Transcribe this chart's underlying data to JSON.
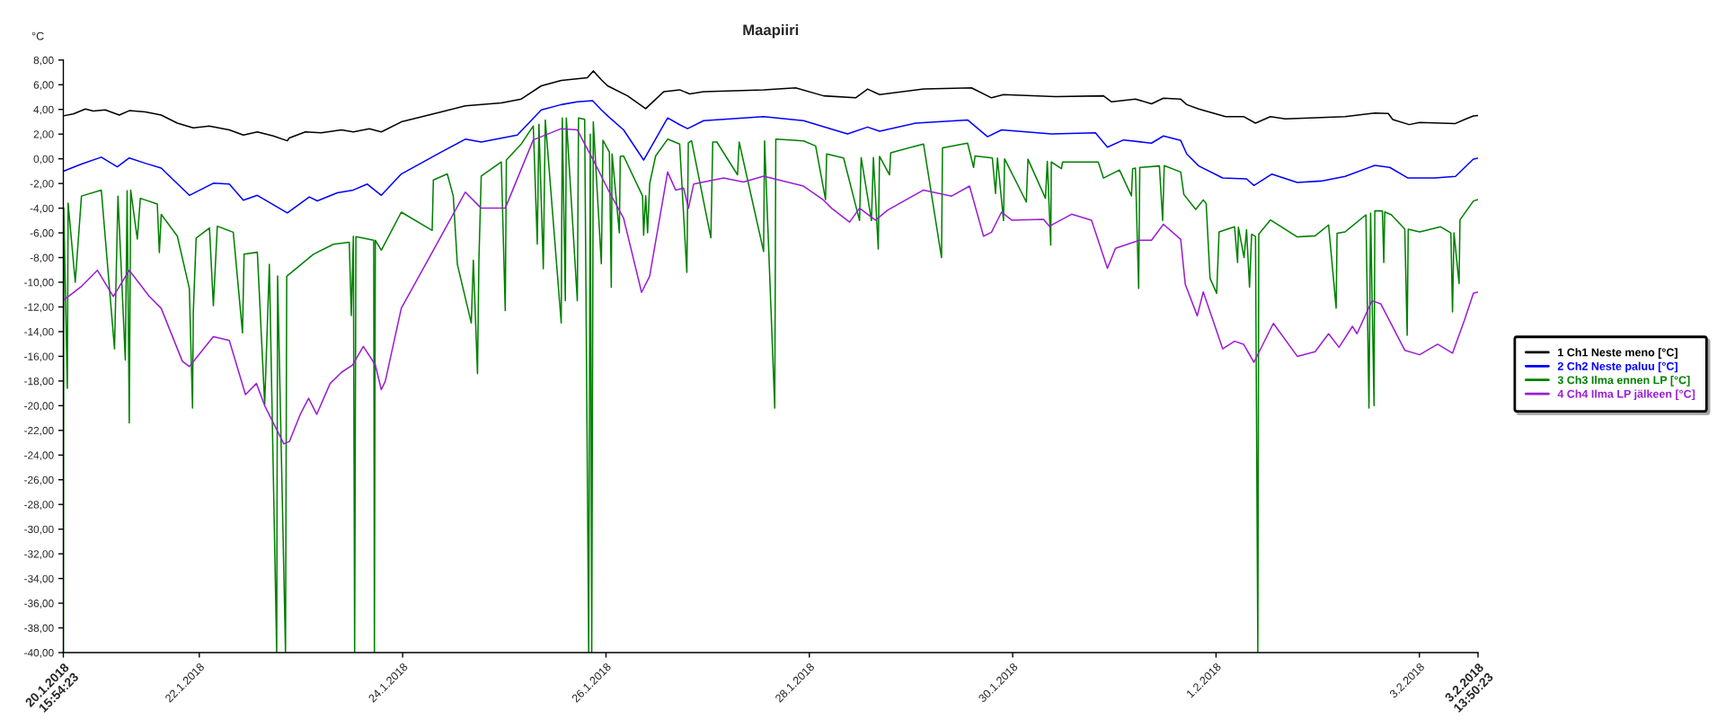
{
  "chart_data": {
    "type": "line",
    "title": "Maapiiri",
    "ylabel": "°C",
    "xlim": [
      "2018-01-20T15:54:23",
      "2018-02-03T13:50:23"
    ],
    "xticks": [
      {
        "value": "2018-01-20T15:54:23",
        "label": "20.1.2018\n15:54:23"
      },
      {
        "value": "2018-01-22",
        "label": "22.1.2018"
      },
      {
        "value": "2018-01-24",
        "label": "24.1.2018"
      },
      {
        "value": "2018-01-26",
        "label": "26.1.2018"
      },
      {
        "value": "2018-01-28",
        "label": "28.1.2018"
      },
      {
        "value": "2018-01-30",
        "label": "30.1.2018"
      },
      {
        "value": "2018-02-01",
        "label": "1.2.2018"
      },
      {
        "value": "2018-02-03",
        "label": "3.2.2018"
      },
      {
        "value": "2018-02-03T13:50:23",
        "label": "3.2.2018\n13:50:23"
      }
    ],
    "ylim": [
      -40,
      8
    ],
    "yticks": [
      {
        "value": 8,
        "label": "8,00"
      },
      {
        "value": 6,
        "label": "6,00"
      },
      {
        "value": 4,
        "label": "4,00"
      },
      {
        "value": 2,
        "label": "2,00"
      },
      {
        "value": 0,
        "label": "0,00"
      },
      {
        "value": -2,
        "label": "-2,00"
      },
      {
        "value": -4,
        "label": "-4,00"
      },
      {
        "value": -6,
        "label": "-6,00"
      },
      {
        "value": -8,
        "label": "-8,00"
      },
      {
        "value": -10,
        "label": "-10,00"
      },
      {
        "value": -12,
        "label": "-12,00"
      },
      {
        "value": -14,
        "label": "-14,00"
      },
      {
        "value": -16,
        "label": "-16,00"
      },
      {
        "value": -18,
        "label": "-18,00"
      },
      {
        "value": -20,
        "label": "-20,00"
      },
      {
        "value": -22,
        "label": "-22,00"
      },
      {
        "value": -24,
        "label": "-24,00"
      },
      {
        "value": -26,
        "label": "-26,00"
      },
      {
        "value": -28,
        "label": "-28,00"
      },
      {
        "value": -30,
        "label": "-30,00"
      },
      {
        "value": -32,
        "label": "-32,00"
      },
      {
        "value": -34,
        "label": "-34,00"
      },
      {
        "value": -36,
        "label": "-36,00"
      },
      {
        "value": -38,
        "label": "-38,00"
      },
      {
        "value": -40,
        "label": "-40,00"
      }
    ],
    "legend": "right",
    "series": [
      {
        "name": "1 Ch1 Neste meno [°C]",
        "color": "#000000",
        "x": [
          "2018-01-20T15:54:23",
          "2018-01-20T18:16",
          "2018-01-20T21:06",
          "2018-01-20T22:58",
          "2018-01-21T01:48",
          "2018-01-21T05:07",
          "2018-01-21T07:28",
          "2018-01-21T11:15",
          "2018-01-21T15:01",
          "2018-01-21T18:49",
          "2018-01-21T22:35",
          "2018-01-22T02:21",
          "2018-01-22T07:05",
          "2018-01-22T10:24",
          "2018-01-22T13:42",
          "2018-01-22T17:28",
          "2018-01-22T20:47",
          "2018-01-22T21:14",
          "2018-01-23T01:02",
          "2018-01-23T04:48",
          "2018-01-23T09:32",
          "2018-01-23T12:22",
          "2018-01-23T16:08",
          "2018-01-23T18:58",
          "2018-01-23T23:41",
          "2018-01-24T09:07",
          "2018-01-24T14:47",
          "2018-01-24T23:17",
          "2018-01-25T04:00",
          "2018-01-25T08:44",
          "2018-01-25T13:26",
          "2018-01-25T19:35",
          "2018-01-25T21:00",
          "2018-01-25T22:54",
          "2018-01-26T00:23",
          "2018-01-26T05:05",
          "2018-01-26T09:22",
          "2018-01-26T13:36",
          "2018-01-26T17:23",
          "2018-01-26T19:44",
          "2018-01-26T23:02",
          "2018-01-27T13:12",
          "2018-01-27T20:46",
          "2018-01-28T03:22",
          "2018-01-28T10:55",
          "2018-01-28T13:45",
          "2018-01-28T16:35",
          "2018-01-29T02:57",
          "2018-01-29T14:17",
          "2018-01-29T19:00",
          "2018-01-29T21:50",
          "2018-01-30T10:06",
          "2018-01-30T21:26",
          "2018-01-30T23:20",
          "2018-01-31T04:59",
          "2018-01-31T08:46",
          "2018-01-31T11:35",
          "2018-01-31T15:40",
          "2018-01-31T17:05",
          "2018-01-31T19:55",
          "2018-02-01T02:15",
          "2018-02-01T06:29",
          "2018-02-01T09:19",
          "2018-02-01T12:50",
          "2018-02-01T16:21",
          "2018-02-02T06:27",
          "2018-02-02T13:29",
          "2018-02-02T16:39",
          "2018-02-02T17:43",
          "2018-02-02T21:36",
          "2018-02-03T00:04",
          "2018-02-03T08:31",
          "2018-02-03T10:38",
          "2018-02-03T12:45",
          "2018-02-03T13:50:23"
        ],
        "values": [
          3.48,
          3.64,
          4.03,
          3.87,
          3.96,
          3.54,
          3.9,
          3.8,
          3.54,
          2.89,
          2.5,
          2.66,
          2.34,
          1.92,
          2.18,
          1.85,
          1.46,
          1.69,
          2.18,
          2.11,
          2.34,
          2.18,
          2.44,
          2.18,
          2.99,
          3.8,
          4.29,
          4.52,
          4.84,
          5.91,
          6.34,
          6.56,
          7.12,
          6.4,
          5.91,
          5.1,
          4.06,
          5.43,
          5.59,
          5.26,
          5.43,
          5.59,
          5.75,
          5.1,
          4.94,
          5.65,
          5.2,
          5.65,
          5.75,
          4.94,
          5.2,
          5.04,
          5.1,
          4.61,
          4.84,
          4.45,
          4.91,
          4.83,
          4.39,
          4.03,
          3.42,
          3.42,
          2.89,
          3.42,
          3.23,
          3.42,
          3.71,
          3.67,
          3.18,
          2.77,
          2.94,
          2.86,
          3.18,
          3.47,
          3.5
        ]
      },
      {
        "name": "2 Ch2 Neste paluu [°C]",
        "color": "#0000ff",
        "x": [
          "2018-01-20T15:54:23",
          "2018-01-20T20:11",
          "2018-01-21T00:52",
          "2018-01-21T04:39",
          "2018-01-21T07:28",
          "2018-01-21T11:15",
          "2018-01-21T15:01",
          "2018-01-21T21:39",
          "2018-01-22T03:19",
          "2018-01-22T07:05",
          "2018-01-22T10:24",
          "2018-01-22T13:42",
          "2018-01-22T20:47",
          "2018-01-23T01:58",
          "2018-01-23T03:52",
          "2018-01-23T08:34",
          "2018-01-23T12:22",
          "2018-01-23T15:39",
          "2018-01-23T18:58",
          "2018-01-23T23:41",
          "2018-01-24T09:07",
          "2018-01-24T14:47",
          "2018-01-24T18:33",
          "2018-01-25T03:04",
          "2018-01-25T08:44",
          "2018-01-25T13:26",
          "2018-01-25T17:14",
          "2018-01-25T20:50",
          "2018-01-25T22:54",
          "2018-01-26T00:23",
          "2018-01-26T04:09",
          "2018-01-26T08:53",
          "2018-01-26T14:33",
          "2018-01-26T17:23",
          "2018-01-26T19:16",
          "2018-01-26T23:02",
          "2018-01-27T13:12",
          "2018-01-27T22:38",
          "2018-01-28T09:01",
          "2018-01-28T13:45",
          "2018-01-28T16:35",
          "2018-01-29T01:05",
          "2018-01-29T13:21",
          "2018-01-29T18:04",
          "2018-01-29T21:22",
          "2018-01-30T09:10",
          "2018-01-30T19:32",
          "2018-01-30T22:22",
          "2018-01-31T02:10",
          "2018-01-31T08:46",
          "2018-01-31T11:35",
          "2018-01-31T15:40",
          "2018-01-31T17:05",
          "2018-01-31T19:55",
          "2018-02-01T01:34",
          "2018-02-01T07:12",
          "2018-02-01T08:57",
          "2018-02-01T13:11",
          "2018-02-01T19:11",
          "2018-02-02T00:49",
          "2018-02-02T06:27",
          "2018-02-02T13:29",
          "2018-02-02T17:01",
          "2018-02-02T21:14",
          "2018-02-03T03:35",
          "2018-02-03T08:31",
          "2018-02-03T12:45",
          "2018-02-03T13:50:23"
        ],
        "values": [
          -1.01,
          -0.42,
          0.13,
          -0.65,
          0.07,
          -0.36,
          -0.75,
          -2.96,
          -1.98,
          -2.05,
          -3.35,
          -2.96,
          -4.39,
          -3.09,
          -3.41,
          -2.76,
          -2.53,
          -2.05,
          -2.96,
          -1.23,
          0.55,
          1.59,
          1.36,
          1.92,
          3.96,
          4.39,
          4.61,
          4.71,
          3.96,
          3.48,
          2.34,
          -0.1,
          3.31,
          2.76,
          2.44,
          3.09,
          3.41,
          3.09,
          2.01,
          2.57,
          2.24,
          2.89,
          3.15,
          1.79,
          2.34,
          2.01,
          2.11,
          0.94,
          1.53,
          1.27,
          1.85,
          1.48,
          0.39,
          -0.58,
          -1.55,
          -1.63,
          -2.16,
          -1.24,
          -1.92,
          -1.8,
          -1.43,
          -0.53,
          -0.7,
          -1.55,
          -1.55,
          -1.43,
          -0.02,
          0.05
        ]
      },
      {
        "name": "3 Ch3 Ilma ennen LP [°C]",
        "color": "#008000",
        "x": [
          "2018-01-20T15:54:23",
          "2018-01-20T16:00",
          "2018-01-20T16:51",
          "2018-01-20T17:02",
          "2018-01-20T18:43",
          "2018-01-20T20:11",
          "2018-01-21T00:52",
          "2018-01-21T03:59",
          "2018-01-21T04:48",
          "2018-01-21T06:32",
          "2018-01-21T06:58",
          "2018-01-21T07:28",
          "2018-01-21T07:48",
          "2018-01-21T09:22",
          "2018-01-21T10:05",
          "2018-01-21T14:05",
          "2018-01-21T14:34",
          "2018-01-21T15:01",
          "2018-01-21T18:49",
          "2018-01-21T21:39",
          "2018-01-21T22:24",
          "2018-01-21T22:35",
          "2018-01-21T23:15",
          "2018-01-22T02:24",
          "2018-01-22T03:19",
          "2018-01-22T04:15",
          "2018-01-22T08:01",
          "2018-01-22T10:12",
          "2018-01-22T10:34",
          "2018-01-22T13:42",
          "2018-01-22T15:26",
          "2018-01-22T16:32",
          "2018-01-22T18:16",
          "2018-01-22T18:29",
          "2018-01-22T20:21",
          "2018-01-22T20:38",
          "2018-01-23T02:56",
          "2018-01-23T07:38",
          "2018-01-23T11:24",
          "2018-01-23T11:53",
          "2018-01-23T12:22",
          "2018-01-23T12:40",
          "2018-01-23T12:58",
          "2018-01-23T17:10",
          "2018-01-23T17:20",
          "2018-01-23T17:33",
          "2018-01-23T18:58",
          "2018-01-23T23:41",
          "2018-01-24T06:58",
          "2018-01-24T07:15",
          "2018-01-24T10:32",
          "2018-01-24T11:57",
          "2018-01-24T12:55",
          "2018-01-24T16:12",
          "2018-01-24T16:41",
          "2018-01-24T17:40",
          "2018-01-24T18:00",
          "2018-01-24T18:33",
          "2018-01-24T23:17",
          "2018-01-25T00:13",
          "2018-01-25T00:29",
          "2018-01-25T04:00",
          "2018-01-25T06:50",
          "2018-01-25T07:47",
          "2018-01-25T08:10",
          "2018-01-25T09:12",
          "2018-01-25T09:40",
          "2018-01-25T13:26",
          "2018-01-25T13:41",
          "2018-01-25T14:24",
          "2018-01-25T14:38",
          "2018-01-25T17:14",
          "2018-01-25T17:31",
          "2018-01-25T18:58",
          "2018-01-25T19:55",
          "2018-01-25T20:17",
          "2018-01-25T20:38",
          "2018-01-25T21:00",
          "2018-01-25T22:54",
          "2018-01-25T23:17",
          "2018-01-26T00:48",
          "2018-01-26T01:15",
          "2018-01-26T01:26",
          "2018-01-26T03:09",
          "2018-01-26T03:22",
          "2018-01-26T04:09",
          "2018-01-26T08:38",
          "2018-01-26T08:53",
          "2018-01-26T09:22",
          "2018-01-26T09:49",
          "2018-01-26T10:19",
          "2018-01-26T11:43",
          "2018-01-26T14:33",
          "2018-01-26T17:23",
          "2018-01-26T19:05",
          "2018-01-26T19:26",
          "2018-01-26T20:12",
          "2018-01-27T00:45",
          "2018-01-27T01:12",
          "2018-01-27T02:10",
          "2018-01-27T07:03",
          "2018-01-27T07:26",
          "2018-01-27T13:12",
          "2018-01-27T13:26",
          "2018-01-27T15:50",
          "2018-01-27T16:05",
          "2018-01-27T22:38",
          "2018-01-28T01:29",
          "2018-01-28T03:49",
          "2018-01-28T04:05",
          "2018-01-28T08:05",
          "2018-01-28T11:51",
          "2018-01-28T12:14",
          "2018-01-28T14:40",
          "2018-01-28T15:07",
          "2018-01-28T16:16",
          "2018-01-28T16:34",
          "2018-01-28T18:56",
          "2018-01-28T19:12",
          "2018-01-29T02:57",
          "2018-01-29T07:12",
          "2018-01-29T07:26",
          "2018-01-29T13:21",
          "2018-01-29T14:46",
          "2018-01-29T15:07",
          "2018-01-29T19:12",
          "2018-01-29T19:57",
          "2018-01-29T20:24",
          "2018-01-29T21:50",
          "2018-01-29T22:05",
          "2018-01-30T03:13",
          "2018-01-30T03:36",
          "2018-01-30T07:44",
          "2018-01-30T08:10",
          "2018-01-30T08:59",
          "2018-01-30T09:07",
          "2018-01-30T11:31",
          "2018-01-30T11:46",
          "2018-01-30T20:12",
          "2018-01-30T21:26",
          "2018-01-31T01:12",
          "2018-01-31T04:02",
          "2018-01-31T04:19",
          "2018-01-31T04:58",
          "2018-01-31T05:44",
          "2018-01-31T06:00",
          "2018-01-31T10:38",
          "2018-01-31T11:24",
          "2018-01-31T11:46",
          "2018-01-31T15:40",
          "2018-01-31T16:24",
          "2018-01-31T19:12",
          "2018-01-31T20:59",
          "2018-01-31T21:40",
          "2018-01-31T22:35",
          "2018-02-01T00:09",
          "2018-02-01T00:43",
          "2018-02-01T04:22",
          "2018-02-01T05:05",
          "2018-02-01T05:17",
          "2018-02-01T06:37",
          "2018-02-01T07:12",
          "2018-02-01T07:54",
          "2018-02-01T08:24",
          "2018-02-01T09:19",
          "2018-02-01T09:52",
          "2018-02-01T10:05",
          "2018-02-01T12:50",
          "2018-02-01T19:11",
          "2018-02-01T23:24",
          "2018-02-02T02:34",
          "2018-02-02T04:21",
          "2018-02-02T04:34",
          "2018-02-02T06:27",
          "2018-02-02T11:23",
          "2018-02-02T12:06",
          "2018-02-02T12:29",
          "2018-02-02T13:18",
          "2018-02-02T13:29",
          "2018-02-02T15:16",
          "2018-02-02T15:36",
          "2018-02-02T15:50",
          "2018-02-02T17:23",
          "2018-02-02T20:33",
          "2018-02-02T21:07",
          "2018-02-02T21:22",
          "2018-02-03T00:04",
          "2018-02-03T05:01",
          "2018-02-03T07:26",
          "2018-02-03T07:49",
          "2018-02-03T08:10",
          "2018-02-03T09:22",
          "2018-02-03T09:35",
          "2018-02-03T12:45",
          "2018-02-03T13:50:23"
        ],
        "values": [
          -40,
          -4.0,
          -18.6,
          -3.6,
          -10.0,
          -3.02,
          -2.53,
          -15.4,
          -3.02,
          -16.3,
          -2.6,
          -21.4,
          -2.53,
          -6.5,
          -3.2,
          -3.67,
          -7.6,
          -4.5,
          -6.27,
          -10.5,
          -20.2,
          -12.45,
          -6.43,
          -5.6,
          -11.9,
          -5.46,
          -5.95,
          -14.1,
          -7.73,
          -7.57,
          -19.9,
          -8.55,
          -40,
          -9.5,
          -40,
          -9.52,
          -7.73,
          -6.92,
          -6.76,
          -12.7,
          -6.27,
          -40,
          -6.3,
          -6.6,
          -40,
          -6.6,
          -7.41,
          -4.32,
          -5.8,
          -1.72,
          -1.23,
          -3.02,
          -8.55,
          -13.3,
          -8.22,
          -17.4,
          -8.2,
          -1.4,
          -0.26,
          -12.3,
          -0.1,
          1.2,
          2.66,
          -6.9,
          2.8,
          -8.9,
          3.15,
          -13.3,
          3.31,
          -11.5,
          3.3,
          -11.5,
          3.31,
          3.2,
          -40,
          2.0,
          -40,
          2.99,
          -8.5,
          1.5,
          0.55,
          -10.4,
          0.4,
          -6.0,
          0.2,
          0.23,
          -3.02,
          -6.2,
          -3.0,
          -6.0,
          -2.0,
          0.23,
          1.59,
          1.2,
          -9.2,
          1.3,
          1.46,
          -6.4,
          1.36,
          1.36,
          -1.3,
          1.36,
          -7.5,
          1.45,
          -20.2,
          1.59,
          1.45,
          1.04,
          -3.3,
          0.39,
          0.07,
          -5.0,
          0.1,
          -5.0,
          0.1,
          -7.3,
          0.2,
          -1.3,
          0.49,
          1.2,
          -8.0,
          0.88,
          1.27,
          -0.7,
          0.23,
          0.07,
          -2.8,
          0.07,
          -5.0,
          0.0,
          -3.5,
          -0.03,
          -3.2,
          -0.2,
          -7.0,
          -0.26,
          -0.8,
          -0.26,
          -0.26,
          -1.56,
          -0.91,
          -3.0,
          -0.8,
          -0.75,
          -10.5,
          -0.7,
          -0.58,
          -5.0,
          -0.55,
          -1.07,
          -2.89,
          -4.1,
          -3.33,
          -3.62,
          -9.68,
          -10.9,
          -5.92,
          -5.51,
          -8.4,
          -5.55,
          -8.0,
          -5.75,
          -10.4,
          -6.1,
          -6.29,
          -40,
          -6.1,
          -4.95,
          -6.33,
          -6.24,
          -5.36,
          -12.1,
          -6.04,
          -5.92,
          -4.54,
          -20.2,
          -4.4,
          -20.0,
          -4.22,
          -4.22,
          -8.4,
          -4.3,
          -4.54,
          -5.68,
          -14.3,
          -5.7,
          -5.92,
          -5.51,
          -6.0,
          -12.4,
          -6.0,
          -10.1,
          -4.95,
          -3.42,
          -3.3
        ]
      },
      {
        "name": "4 Ch4 Ilma LP jälkeen [°C]",
        "color": "#9a1dd6",
        "x": [
          "2018-01-20T15:54:23",
          "2018-01-20T20:11",
          "2018-01-20T23:56",
          "2018-01-21T03:42",
          "2018-01-21T07:28",
          "2018-01-21T12:12",
          "2018-01-21T15:01",
          "2018-01-21T20:00",
          "2018-01-21T21:39",
          "2018-01-22T03:19",
          "2018-01-22T07:05",
          "2018-01-22T10:54",
          "2018-01-22T13:29",
          "2018-01-22T15:26",
          "2018-01-22T19:58",
          "2018-01-22T21:16",
          "2018-01-22T23:50",
          "2018-01-23T01:48",
          "2018-01-23T03:43",
          "2018-01-23T06:53",
          "2018-01-23T09:33",
          "2018-01-23T12:10",
          "2018-01-23T14:43",
          "2018-01-23T17:33",
          "2018-01-23T18:58",
          "2018-01-23T19:55",
          "2018-01-23T23:41",
          "2018-01-24T07:15",
          "2018-01-24T14:47",
          "2018-01-24T18:33",
          "2018-01-25T00:13",
          "2018-01-25T06:50",
          "2018-01-25T13:26",
          "2018-01-25T17:14",
          "2018-01-25T21:00",
          "2018-01-26T00:48",
          "2018-01-26T04:09",
          "2018-01-26T08:24",
          "2018-01-26T10:18",
          "2018-01-26T14:33",
          "2018-01-26T16:26",
          "2018-01-26T18:19",
          "2018-01-26T19:28",
          "2018-01-26T20:41",
          "2018-01-27T03:46",
          "2018-01-27T08:28",
          "2018-01-27T13:12",
          "2018-01-27T22:38",
          "2018-01-28T03:22",
          "2018-01-28T05:15",
          "2018-01-28T09:30",
          "2018-01-28T11:51",
          "2018-01-28T15:37",
          "2018-01-28T18:27",
          "2018-01-29T02:57",
          "2018-01-29T09:35",
          "2018-01-29T13:49",
          "2018-01-29T17:07",
          "2018-01-29T19:00",
          "2018-01-29T21:22",
          "2018-01-29T23:47",
          "2018-01-30T07:16",
          "2018-01-30T08:41",
          "2018-01-30T13:54",
          "2018-01-30T18:36",
          "2018-01-30T22:22",
          "2018-01-31T00:16",
          "2018-01-31T05:56",
          "2018-01-31T08:46",
          "2018-01-31T11:35",
          "2018-01-31T15:40",
          "2018-01-31T16:44",
          "2018-01-31T19:34",
          "2018-01-31T20:59",
          "2018-02-01T01:34",
          "2018-02-01T04:22",
          "2018-02-01T06:29",
          "2018-02-01T08:57",
          "2018-02-01T13:32",
          "2018-02-01T19:11",
          "2018-02-01T23:24",
          "2018-02-02T02:34",
          "2018-02-02T05:02",
          "2018-02-02T08:12",
          "2018-02-02T09:16",
          "2018-02-02T12:48",
          "2018-02-02T14:54",
          "2018-02-02T20:33",
          "2018-02-03T00:04",
          "2018-02-03T04:18",
          "2018-02-03T07:49",
          "2018-02-03T10:38",
          "2018-02-03T12:45",
          "2018-02-03T13:50:23"
        ],
        "values": [
          -11.47,
          -10.33,
          -9.03,
          -11.15,
          -9.03,
          -11.15,
          -12.12,
          -16.4,
          -16.83,
          -14.4,
          -14.72,
          -19.1,
          -18.2,
          -20.0,
          -23.1,
          -22.9,
          -20.7,
          -19.4,
          -20.7,
          -18.2,
          -17.3,
          -16.7,
          -15.2,
          -16.7,
          -18.7,
          -18.0,
          -12.1,
          -7.41,
          -2.7,
          -4.0,
          -4.0,
          1.53,
          2.44,
          2.34,
          -0.1,
          -2.7,
          -4.81,
          -10.82,
          -9.52,
          -1.07,
          -2.53,
          -2.37,
          -4.0,
          -2.05,
          -1.56,
          -1.88,
          -1.4,
          -2.21,
          -3.35,
          -4.0,
          -5.13,
          -4.0,
          -4.97,
          -4.16,
          -2.53,
          -3.02,
          -2.21,
          -6.27,
          -5.95,
          -4.32,
          -4.97,
          -4.91,
          -5.46,
          -4.49,
          -4.97,
          -8.87,
          -7.25,
          -6.6,
          -6.6,
          -5.3,
          -6.53,
          -10.17,
          -12.72,
          -10.78,
          -15.39,
          -14.78,
          -15.02,
          -16.48,
          -13.33,
          -16.0,
          -15.63,
          -14.17,
          -15.27,
          -13.57,
          -14.17,
          -11.5,
          -11.75,
          -15.51,
          -15.87,
          -15.02,
          -15.75,
          -13.08,
          -10.9,
          -10.8
        ]
      }
    ]
  }
}
